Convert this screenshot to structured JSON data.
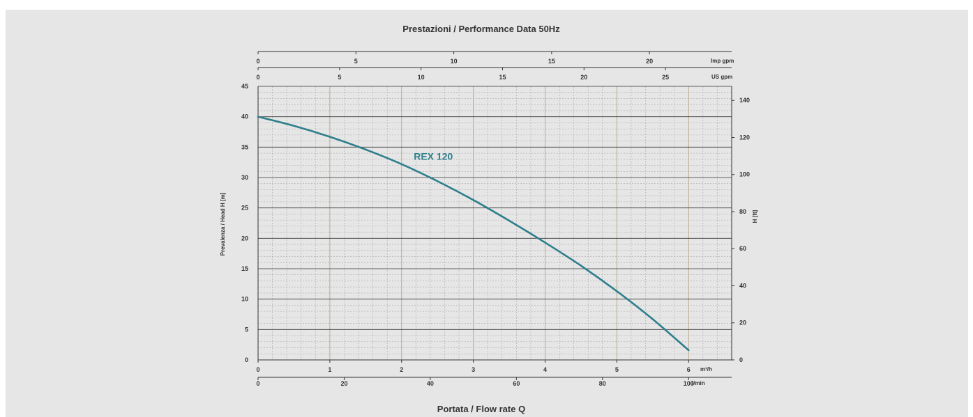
{
  "chart_data": {
    "type": "line",
    "title": "Prestazioni / Performance Data 50Hz",
    "xlabel": "Portata / Flow rate Q",
    "ylabel": "Prevalenza / Head H [m]",
    "ylabel_right": "H [ft]",
    "x_primary": {
      "unit": "m³/h",
      "range": [
        0,
        6.6
      ],
      "ticks": [
        0,
        1,
        2,
        3,
        4,
        5,
        6
      ]
    },
    "x_lmin": {
      "unit": "l/min",
      "range": [
        0,
        110
      ],
      "ticks": [
        0,
        20,
        40,
        60,
        80,
        100
      ]
    },
    "x_usgpm": {
      "unit": "US gpm",
      "range": [
        0,
        29.06
      ],
      "ticks": [
        0,
        5,
        10,
        15,
        20,
        25
      ]
    },
    "x_impgpm": {
      "unit": "Imp gpm",
      "range": [
        0,
        24.2
      ],
      "ticks": [
        0,
        5,
        10,
        15,
        20
      ]
    },
    "y_left": {
      "unit": "m",
      "range": [
        0,
        45
      ],
      "ticks": [
        0,
        5,
        10,
        15,
        20,
        25,
        30,
        35,
        40,
        45
      ]
    },
    "y_right": {
      "unit": "ft",
      "range": [
        0,
        147.6
      ],
      "ticks": [
        0,
        20,
        40,
        60,
        80,
        100,
        120,
        140
      ]
    },
    "grid": true,
    "series": [
      {
        "name": "REX 120",
        "color": "#2e7f8c",
        "x": [
          0,
          0.5,
          1,
          1.5,
          2,
          2.5,
          3,
          3.5,
          4,
          4.5,
          5,
          5.5,
          6
        ],
        "y": [
          40,
          38.5,
          36.7,
          34.6,
          32.2,
          29.4,
          26.3,
          22.9,
          19.3,
          15.5,
          11.3,
          6.7,
          1.6
        ]
      }
    ]
  }
}
